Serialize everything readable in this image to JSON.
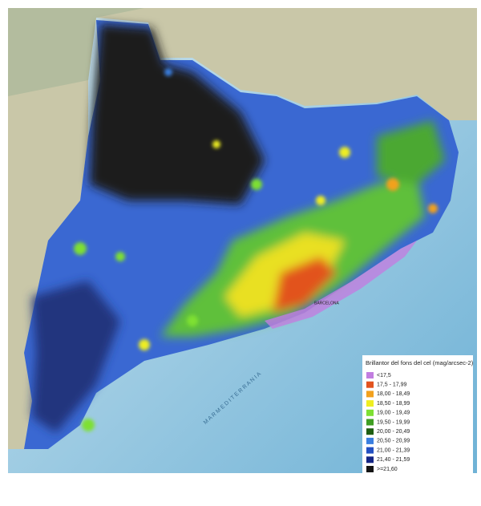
{
  "map": {
    "city_label": "BARCELONA",
    "sea_label": "M A R   M E D I T E R R A N I A"
  },
  "legend": {
    "title": "Brillantor del fons del cel (mag/arcsec-2)",
    "items": [
      {
        "label": "<17,5",
        "color": "#c27ee0"
      },
      {
        "label": "17,5 - 17,99",
        "color": "#e2531f"
      },
      {
        "label": "18,00 - 18,49",
        "color": "#f2a11e"
      },
      {
        "label": "18,50 - 18,99",
        "color": "#eeee22"
      },
      {
        "label": "19,00 - 19,49",
        "color": "#7ee033"
      },
      {
        "label": "19,50 - 19,99",
        "color": "#3f9e22"
      },
      {
        "label": "20,00 - 20,49",
        "color": "#1f5e12"
      },
      {
        "label": "20,50 - 20,99",
        "color": "#3a7fe0"
      },
      {
        "label": "21,00 - 21,39",
        "color": "#2350c2"
      },
      {
        "label": "21,40 - 21,59",
        "color": "#132585"
      },
      {
        "label": ">=21,60",
        "color": "#141414"
      }
    ]
  }
}
